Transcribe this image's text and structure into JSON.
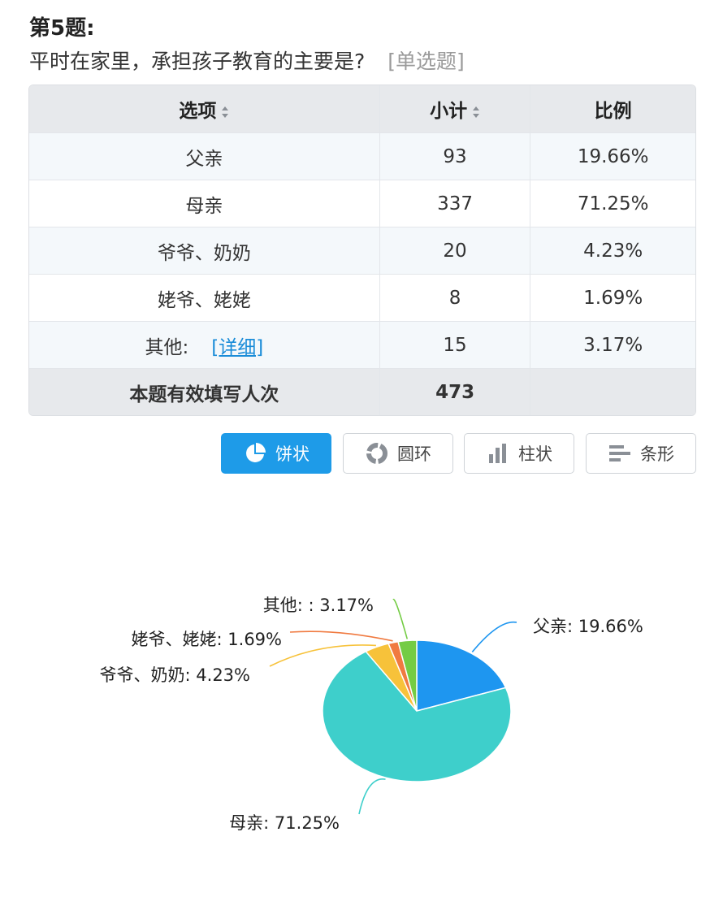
{
  "question": {
    "number": "第5题:",
    "title": "平时在家里，承担孩子教育的主要是?",
    "type": "[单选题]"
  },
  "table": {
    "headers": [
      "选项",
      "小计",
      "比例"
    ],
    "rows": [
      {
        "option": "父亲",
        "count": "93",
        "percent": "19.66%"
      },
      {
        "option": "母亲",
        "count": "337",
        "percent": "71.25%"
      },
      {
        "option": "爷爷、奶奶",
        "count": "20",
        "percent": "4.23%"
      },
      {
        "option": "姥爷、姥姥",
        "count": "8",
        "percent": "1.69%"
      },
      {
        "option": "其他:",
        "count": "15",
        "percent": "3.17%",
        "link": "[详细]"
      }
    ],
    "total_label": "本题有效填写人次",
    "total_count": "473"
  },
  "chart_buttons": [
    {
      "label": "饼状",
      "icon": "pie-icon",
      "active": true
    },
    {
      "label": "圆环",
      "icon": "ring-icon",
      "active": false
    },
    {
      "label": "柱状",
      "icon": "column-icon",
      "active": false
    },
    {
      "label": "条形",
      "icon": "bar-icon",
      "active": false
    }
  ],
  "chart_data": {
    "type": "pie",
    "slices": [
      {
        "label": "父亲: 19.66%",
        "value": 19.66,
        "color": "#1e96f0"
      },
      {
        "label": "母亲: 71.25%",
        "value": 71.25,
        "color": "#3ecfcb"
      },
      {
        "label": "爷爷、奶奶: 4.23%",
        "value": 4.23,
        "color": "#f7c23a"
      },
      {
        "label": "姥爷、姥姥: 1.69%",
        "value": 1.69,
        "color": "#f07a40"
      },
      {
        "label": "其他:   : 3.17%",
        "value": 3.17,
        "color": "#74cc44"
      }
    ]
  }
}
